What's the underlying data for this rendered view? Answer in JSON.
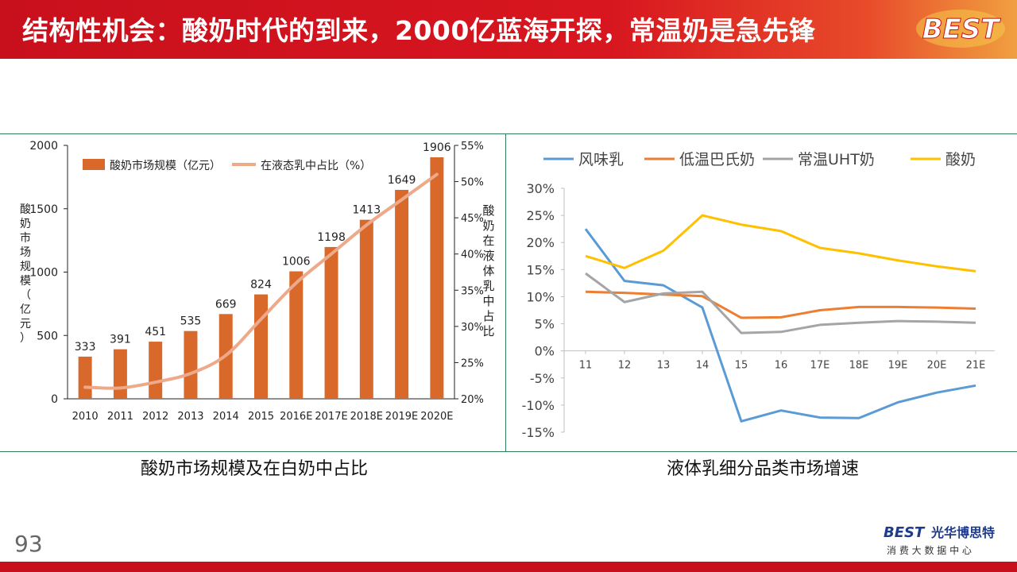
{
  "header": {
    "title": "结构性机会：酸奶时代的到来，2000亿蓝海开探，常温奶是急先锋",
    "logo_text": "BEST"
  },
  "colors": {
    "bar": "#d9692b",
    "share_line": "#eda98a",
    "flavored": "#5b9bd5",
    "chilled": "#ed7d31",
    "uht": "#a5a5a5",
    "yogurt": "#ffc000"
  },
  "captions": {
    "left": "酸奶市场规模及在白奶中占比",
    "right": "液体乳细分品类市场增速"
  },
  "page_number": "93",
  "brand": {
    "name": "光华博思特",
    "tagline": "消 费 大 数 据 中 心",
    "logo": "BEST"
  },
  "chart_data": [
    {
      "type": "bar",
      "categories": [
        "2010",
        "2011",
        "2012",
        "2013",
        "2014",
        "2015",
        "2016E",
        "2017E",
        "2018E",
        "2019E",
        "2020E"
      ],
      "series": [
        {
          "name": "酸奶市场规模（亿元）",
          "type": "bar",
          "axis": "left",
          "values": [
            333,
            391,
            451,
            535,
            669,
            824,
            1006,
            1198,
            1413,
            1649,
            1906
          ]
        },
        {
          "name": "在液态乳中占比（%）",
          "type": "line",
          "axis": "right",
          "values": [
            21.6,
            21.5,
            22.3,
            23.5,
            26.0,
            31.0,
            36.0,
            40.0,
            44.0,
            47.5,
            51.0
          ]
        }
      ],
      "ylabel": "酸奶市场规模（亿元）",
      "y2label": "酸奶在液体乳中占比",
      "ylim": [
        0,
        2000
      ],
      "yticks": [
        "0",
        "500",
        "1000",
        "1500",
        "2000"
      ],
      "y2lim": [
        20,
        55
      ],
      "y2ticks": [
        "20%",
        "25%",
        "30%",
        "35%",
        "40%",
        "45%",
        "50%",
        "55%"
      ],
      "legend": "top-left",
      "data_labels": true
    },
    {
      "type": "line",
      "x": [
        "11",
        "12",
        "13",
        "14",
        "15",
        "16",
        "17E",
        "18E",
        "19E",
        "20E",
        "21E"
      ],
      "series": [
        {
          "name": "风味乳",
          "values": [
            22.5,
            12.9,
            12.1,
            8.0,
            -13.0,
            -11.0,
            -12.3,
            -12.4,
            -9.5,
            -7.7,
            -6.4
          ]
        },
        {
          "name": "低温巴氏奶",
          "values": [
            10.9,
            10.7,
            10.4,
            10.1,
            6.1,
            6.2,
            7.5,
            8.1,
            8.1,
            8.0,
            7.8
          ]
        },
        {
          "name": "常温UHT奶",
          "values": [
            14.3,
            9.0,
            10.6,
            10.9,
            3.3,
            3.5,
            4.8,
            5.2,
            5.5,
            5.4,
            5.2
          ]
        },
        {
          "name": "酸奶",
          "values": [
            17.5,
            15.3,
            18.5,
            25.0,
            23.3,
            22.1,
            19.0,
            18.0,
            16.7,
            15.6,
            14.7
          ]
        }
      ],
      "ylim": [
        -15,
        30
      ],
      "yticks": [
        "-15%",
        "-10%",
        "-5%",
        "0%",
        "5%",
        "10%",
        "15%",
        "20%",
        "25%",
        "30%"
      ],
      "legend": "top"
    }
  ]
}
